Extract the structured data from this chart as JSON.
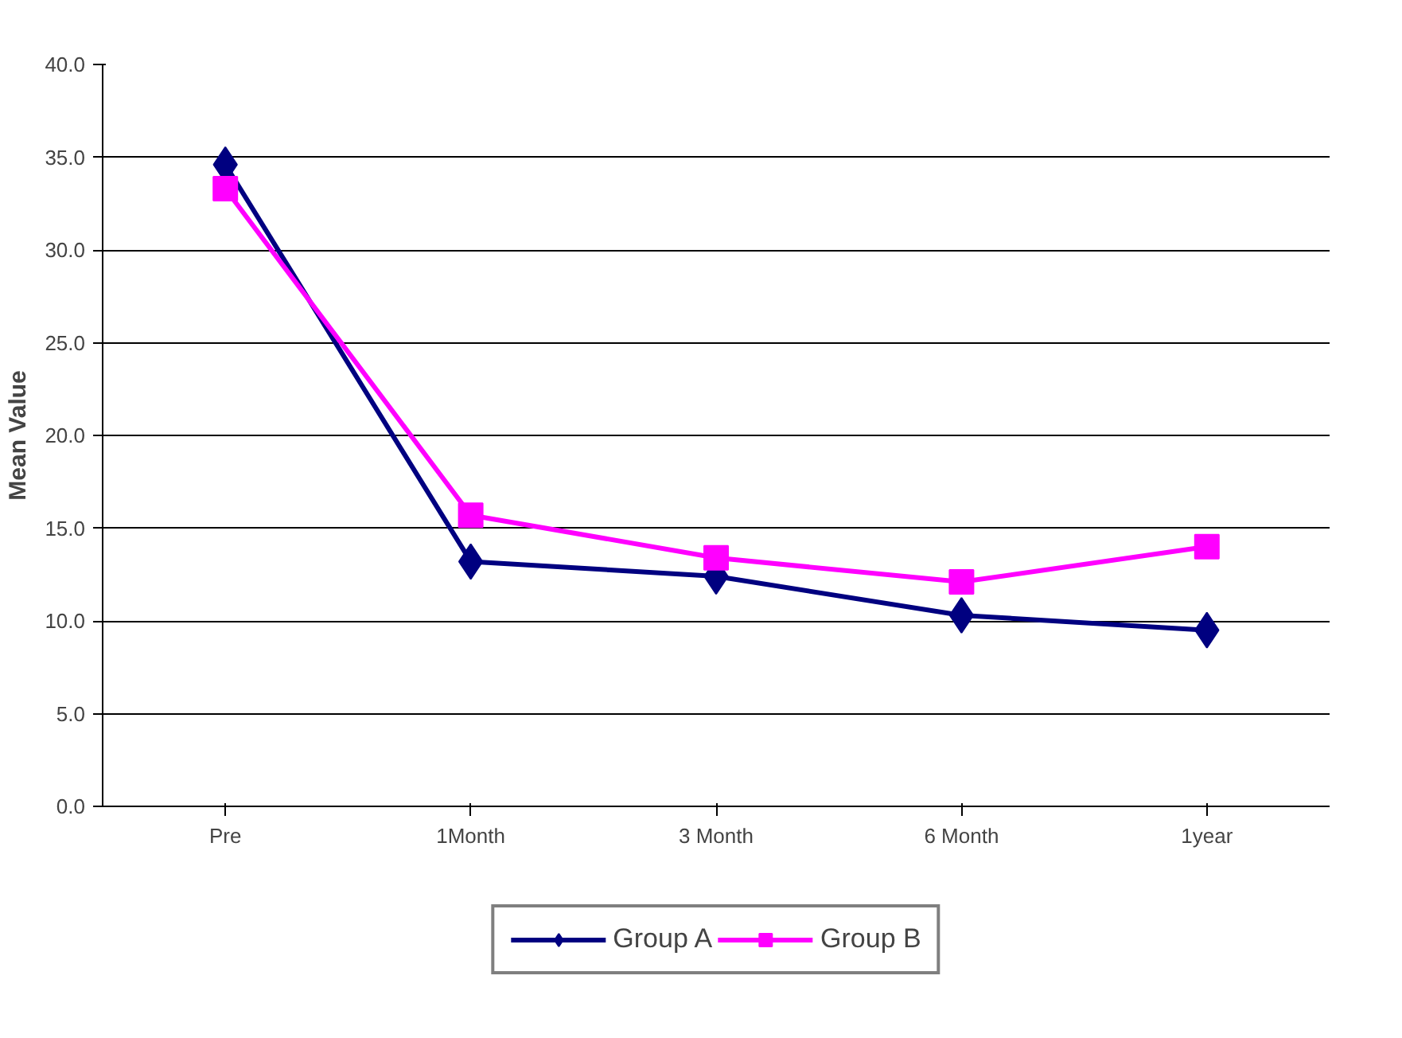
{
  "chart_data": {
    "type": "line",
    "ylabel": "Mean Value",
    "categories": [
      "Pre",
      "1Month",
      "3 Month",
      "6 Month",
      "1year"
    ],
    "series": [
      {
        "name": "Group A",
        "color": "#000080",
        "marker": "diamond",
        "values": [
          34.6,
          13.2,
          12.4,
          10.3,
          9.5
        ]
      },
      {
        "name": "Group B",
        "color": "#ff00ff",
        "marker": "square",
        "values": [
          33.3,
          15.7,
          13.4,
          12.1,
          14.0
        ]
      }
    ],
    "ylim": [
      0,
      40
    ],
    "yticks": [
      {
        "value": 0,
        "label": "0.0"
      },
      {
        "value": 5,
        "label": "5.0"
      },
      {
        "value": 10,
        "label": "10.0"
      },
      {
        "value": 15,
        "label": "15.0"
      },
      {
        "value": 20,
        "label": "20.0"
      },
      {
        "value": 25,
        "label": "25.0"
      },
      {
        "value": 30,
        "label": "30.0"
      },
      {
        "value": 35,
        "label": "35.0"
      },
      {
        "value": 40,
        "label": "40.0"
      }
    ],
    "grid": "y",
    "legend": "bottom",
    "line_style": "solid"
  }
}
